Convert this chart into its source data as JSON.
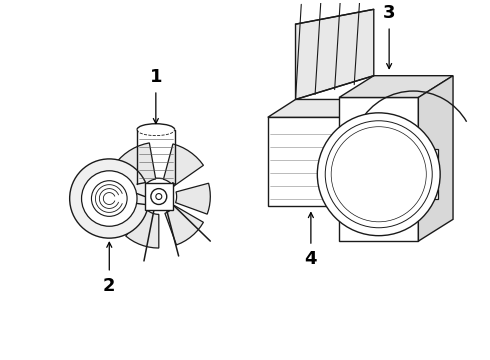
{
  "background_color": "#ffffff",
  "line_color": "#1a1a1a",
  "label_color": "#000000",
  "lw": 1.0,
  "label_fontsize": 13
}
